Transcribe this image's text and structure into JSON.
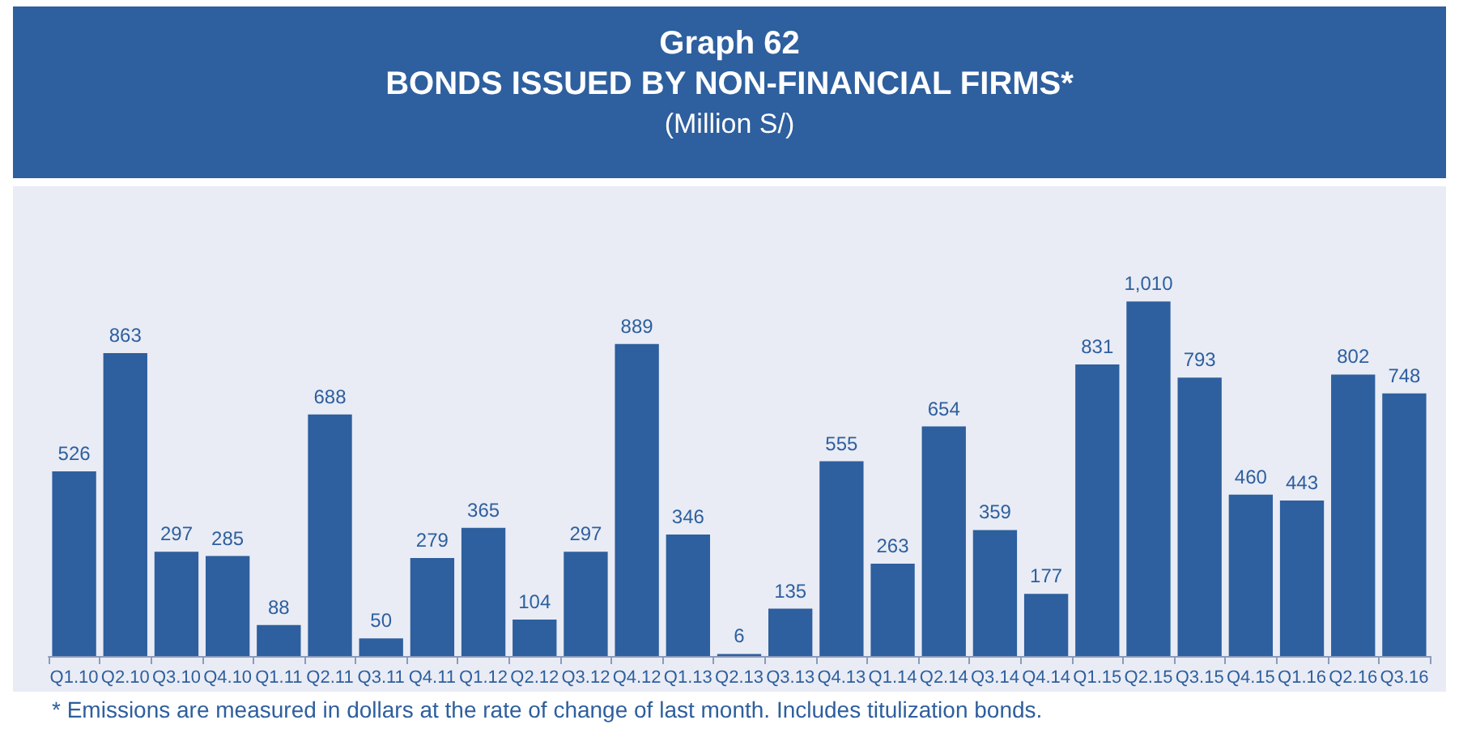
{
  "chart_data": {
    "type": "bar",
    "title": "Graph 62",
    "subtitle": "BONDS ISSUED BY NON-FINANCIAL FIRMS*",
    "categories": [
      "Q1.10",
      "Q2.10",
      "Q3.10",
      "Q4.10",
      "Q1.11",
      "Q2.11",
      "Q3.11",
      "Q4.11",
      "Q1.12",
      "Q2.12",
      "Q3.12",
      "Q4.12",
      "Q1.13",
      "Q2.13",
      "Q3.13",
      "Q4.13",
      "Q1.14",
      "Q2.14",
      "Q3.14",
      "Q4.14",
      "Q1.15",
      "Q2.15",
      "Q3.15",
      "Q4.15",
      "Q1.16",
      "Q2.16",
      "Q3.16"
    ],
    "values": [
      526,
      863,
      297,
      285,
      88,
      688,
      50,
      279,
      365,
      104,
      297,
      889,
      346,
      6,
      135,
      555,
      263,
      654,
      359,
      177,
      831,
      1010,
      793,
      460,
      443,
      802,
      748
    ],
    "value_labels": [
      "526",
      "863",
      "297",
      "285",
      "88",
      "688",
      "50",
      "279",
      "365",
      "104",
      "297",
      "889",
      "346",
      "6",
      "135",
      "555",
      "263",
      "654",
      "359",
      "177",
      "831",
      "1,010",
      "793",
      "460",
      "443",
      "802",
      "748"
    ],
    "color": "#2e5f9e",
    "annotations": [
      "(Million S/)",
      "* Emissions are measured in dollars at the rate of change of last month. Includes titulization bonds."
    ]
  }
}
